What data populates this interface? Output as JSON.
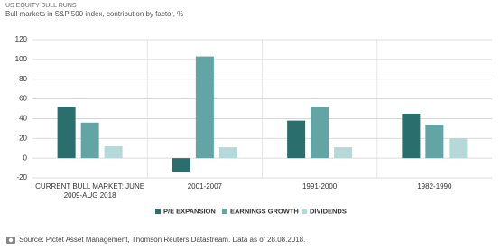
{
  "chart_data": {
    "type": "bar",
    "title": "US EQUITY BULL RUNS",
    "subtitle": "Bull markets in S&P 500 index, contribution by factor, %",
    "categories": [
      "CURRENT BULL MARKET: JUNE 2009-AUG 2018",
      "2001-2007",
      "1991-2000",
      "1982-1990"
    ],
    "series": [
      {
        "name": "P/E EXPANSION",
        "color": "#2a6e6d",
        "values": [
          52,
          -14,
          38,
          45
        ]
      },
      {
        "name": "EARNINGS GROWTH",
        "color": "#62a5a4",
        "values": [
          36,
          103,
          52,
          34
        ]
      },
      {
        "name": "DIVIDENDS",
        "color": "#b5d8d8",
        "values": [
          12,
          11,
          11,
          20
        ]
      }
    ],
    "ylim": [
      -20,
      120
    ],
    "yticks": [
      -20,
      0,
      20,
      40,
      60,
      80,
      100,
      120
    ],
    "grid": true,
    "source": "Source: Pictet Asset Management, Thomson Reuters Datastream. Data as of 28.08.2018."
  }
}
